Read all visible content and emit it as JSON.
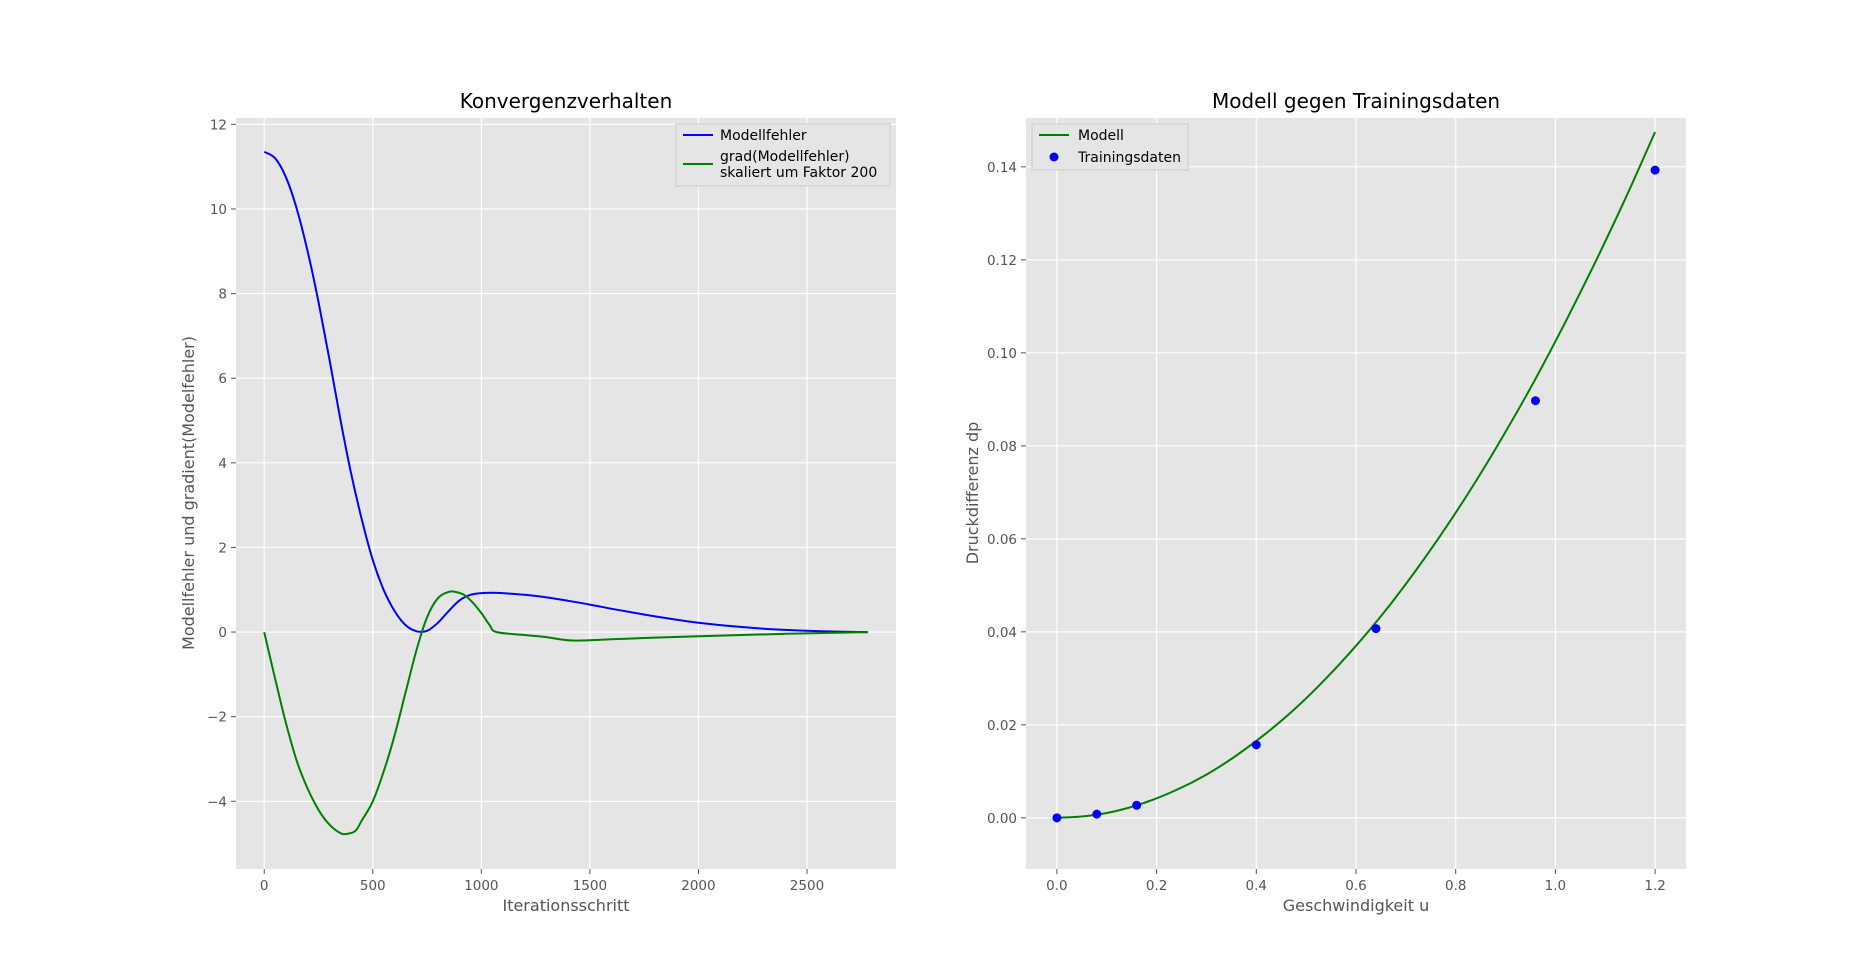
{
  "chart_data": [
    {
      "type": "line",
      "title": "Konvergenzverhalten",
      "xlabel": "Iterationsschritt",
      "ylabel": "Modellfehler und gradient(Modelfehler)",
      "xlim": [
        -130,
        2910
      ],
      "ylim": [
        -5.6,
        12.15
      ],
      "xticks": [
        0,
        500,
        1000,
        1500,
        2000,
        2500
      ],
      "yticks": [
        -4,
        -2,
        0,
        2,
        4,
        6,
        8,
        10,
        12
      ],
      "grid": true,
      "legend_position": "top-right",
      "series": [
        {
          "name": "Modellfehler",
          "color": "#0000ff",
          "x": [
            0,
            50,
            100,
            150,
            200,
            250,
            300,
            350,
            400,
            450,
            500,
            550,
            600,
            650,
            700,
            750,
            800,
            850,
            900,
            950,
            1000,
            1050,
            1100,
            1200,
            1300,
            1400,
            1500,
            1600,
            1700,
            1800,
            1900,
            2000,
            2100,
            2200,
            2300,
            2400,
            2500,
            2600,
            2700,
            2780
          ],
          "y": [
            11.35,
            11.2,
            10.75,
            10.0,
            9.0,
            7.8,
            6.45,
            5.05,
            3.75,
            2.65,
            1.7,
            1.0,
            0.5,
            0.17,
            0.02,
            0.03,
            0.22,
            0.5,
            0.75,
            0.88,
            0.92,
            0.93,
            0.92,
            0.88,
            0.82,
            0.74,
            0.65,
            0.55,
            0.46,
            0.37,
            0.29,
            0.22,
            0.165,
            0.12,
            0.08,
            0.05,
            0.03,
            0.015,
            0.005,
            0.0
          ]
        },
        {
          "name": "grad(Modellfehler)\nskaliert um Faktor 200",
          "color": "#008000",
          "x": [
            0,
            50,
            100,
            150,
            200,
            250,
            300,
            350,
            380,
            420,
            450,
            500,
            550,
            600,
            650,
            700,
            750,
            800,
            850,
            880,
            920,
            960,
            1000,
            1040,
            1070,
            1200,
            1300,
            1420,
            1600,
            1800,
            2000,
            2200,
            2400,
            2600,
            2780
          ],
          "y": [
            0.0,
            -1.1,
            -2.15,
            -3.05,
            -3.7,
            -4.2,
            -4.55,
            -4.75,
            -4.77,
            -4.7,
            -4.45,
            -4.0,
            -3.3,
            -2.45,
            -1.45,
            -0.45,
            0.35,
            0.8,
            0.95,
            0.95,
            0.88,
            0.7,
            0.45,
            0.15,
            0.0,
            -0.07,
            -0.12,
            -0.2,
            -0.17,
            -0.13,
            -0.1,
            -0.07,
            -0.04,
            -0.02,
            0.0
          ]
        }
      ]
    },
    {
      "type": "line",
      "title": "Modell gegen Trainingsdaten",
      "xlabel": "Geschwindigkeit u",
      "ylabel": "Druckdifferenz dp",
      "xlim": [
        -0.062,
        1.262
      ],
      "ylim": [
        -0.011,
        0.1505
      ],
      "xticks": [
        0.0,
        0.2,
        0.4,
        0.6,
        0.8,
        1.0,
        1.2
      ],
      "yticks": [
        0.0,
        0.02,
        0.04,
        0.06,
        0.08,
        0.1,
        0.12,
        0.14
      ],
      "grid": true,
      "legend_position": "top-left",
      "series": [
        {
          "name": "Modell",
          "color": "#008000",
          "kind": "line",
          "x": [
            0.0,
            0.06,
            0.12,
            0.18,
            0.24,
            0.3,
            0.36,
            0.42,
            0.48,
            0.54,
            0.6,
            0.66,
            0.72,
            0.78,
            0.84,
            0.9,
            0.96,
            1.02,
            1.08,
            1.14,
            1.2
          ],
          "y": [
            0.0,
            0.0004,
            0.0015,
            0.0034,
            0.006,
            0.0093,
            0.0134,
            0.0182,
            0.0237,
            0.03,
            0.037,
            0.0447,
            0.0532,
            0.0624,
            0.0723,
            0.083,
            0.0944,
            0.1066,
            0.1195,
            0.1331,
            0.1475
          ]
        },
        {
          "name": "Trainingsdaten",
          "color": "#0000ff",
          "kind": "scatter",
          "x": [
            0.0,
            0.08,
            0.16,
            0.4,
            0.64,
            0.96,
            1.2
          ],
          "y": [
            0.0,
            0.0008,
            0.0027,
            0.0157,
            0.0407,
            0.0897,
            0.1393
          ]
        }
      ]
    }
  ]
}
